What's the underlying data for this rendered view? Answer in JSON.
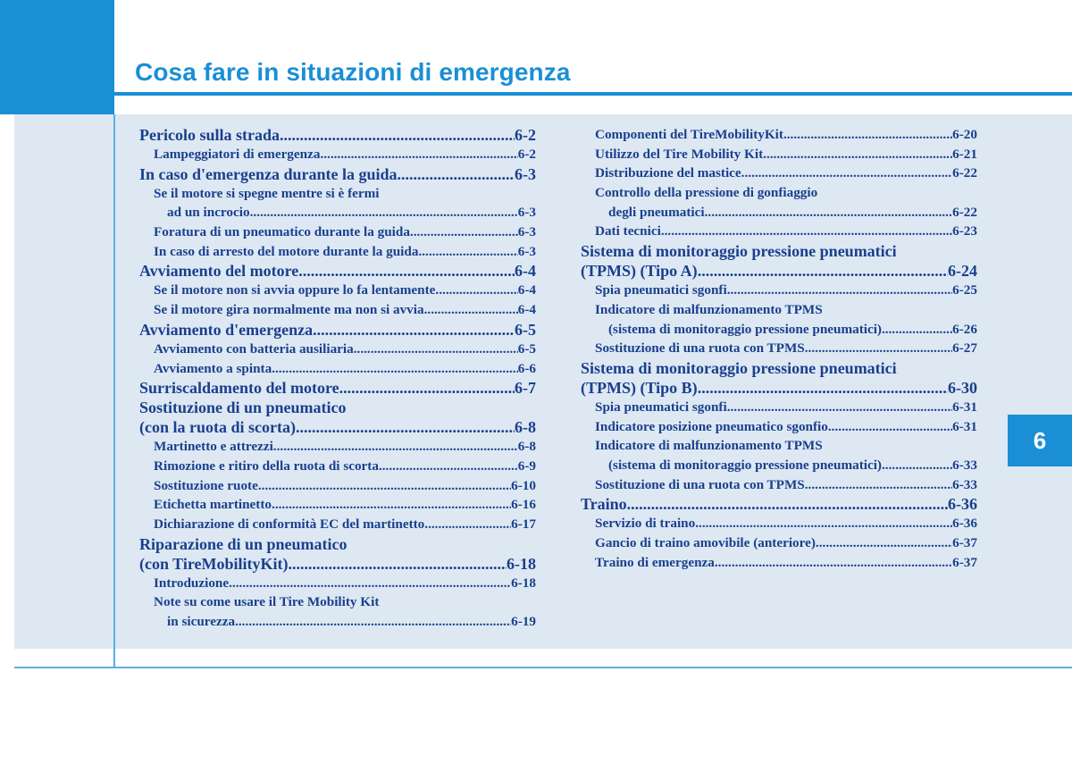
{
  "header": {
    "title": "Cosa fare in situazioni di emergenza",
    "chapter_tab": "6"
  },
  "colors": {
    "accent_blue": "#1a8fd6",
    "panel_background": "#dde8f3",
    "text_navy": "#1a3f8c"
  },
  "toc": {
    "left": [
      {
        "text": "Pericolo sulla strada ",
        "page": "6-2",
        "level": "main"
      },
      {
        "text": "Lampeggiatori di emergenza",
        "page": "6-2",
        "level": "sub"
      },
      {
        "text": "In caso d'emergenza durante la guida ",
        "page": "6-3",
        "level": "main"
      },
      {
        "text": "Se il motore si spegne mentre si è fermi",
        "page": "",
        "level": "sub"
      },
      {
        "text": "ad un incrocio ",
        "page": "6-3",
        "level": "sub2"
      },
      {
        "text": "Foratura di un pneumatico durante la guida",
        "page": "6-3",
        "level": "sub"
      },
      {
        "text": "In caso di arresto del motore durante la guida ",
        "page": "6-3",
        "level": "sub"
      },
      {
        "text": "Avviamento del motore",
        "page": "6-4",
        "level": "main"
      },
      {
        "text": "Se il motore non si avvia oppure lo fa lentamente",
        "page": "6-4",
        "level": "sub"
      },
      {
        "text": "Se il motore gira normalmente ma non si avvia",
        "page": "6-4",
        "level": "sub"
      },
      {
        "text": "Avviamento d'emergenza ",
        "page": "6-5",
        "level": "main"
      },
      {
        "text": "Avviamento con batteria ausiliaria",
        "page": "6-5",
        "level": "sub"
      },
      {
        "text": "Avviamento a spinta",
        "page": "6-6",
        "level": "sub"
      },
      {
        "text": "Surriscaldamento del motore",
        "page": "6-7",
        "level": "main"
      },
      {
        "text": "Sostituzione di un pneumatico",
        "page": "",
        "level": "main"
      },
      {
        "text": "(con la ruota di scorta)",
        "page": "6-8",
        "level": "main"
      },
      {
        "text": "Martinetto e attrezzi",
        "page": "6-8",
        "level": "sub"
      },
      {
        "text": "Rimozione e ritiro della ruota di scorta ",
        "page": "6-9",
        "level": "sub"
      },
      {
        "text": "Sostituzione ruote ",
        "page": "6-10",
        "level": "sub"
      },
      {
        "text": "Etichetta martinetto ",
        "page": "6-16",
        "level": "sub"
      },
      {
        "text": "Dichiarazione di conformità EC del martinetto",
        "page": "6-17",
        "level": "sub"
      },
      {
        "text": "Riparazione di un pneumatico",
        "page": "",
        "level": "main"
      },
      {
        "text": "(con TireMobilityKit)",
        "page": "6-18",
        "level": "main"
      },
      {
        "text": "Introduzione",
        "page": "6-18",
        "level": "sub"
      },
      {
        "text": "Note su come usare il Tire Mobility Kit",
        "page": "",
        "level": "sub"
      },
      {
        "text": "in sicurezza",
        "page": "6-19",
        "level": "sub2"
      }
    ],
    "right": [
      {
        "text": "Componenti del TireMobilityKit ",
        "page": "6-20",
        "level": "sub"
      },
      {
        "text": "Utilizzo del Tire Mobility Kit ",
        "page": "6-21",
        "level": "sub"
      },
      {
        "text": "Distribuzione del mastice",
        "page": "6-22",
        "level": "sub"
      },
      {
        "text": "Controllo della pressione di gonfiaggio",
        "page": "",
        "level": "sub"
      },
      {
        "text": "degli pneumatici  ",
        "page": "6-22",
        "level": "sub2"
      },
      {
        "text": "Dati tecnici",
        "page": "6-23",
        "level": "sub"
      },
      {
        "text": "Sistema di monitoraggio pressione pneumatici",
        "page": "",
        "level": "main"
      },
      {
        "text": "(TPMS) (Tipo A) ",
        "page": "6-24",
        "level": "main"
      },
      {
        "text": "Spia pneumatici sgonfi ",
        "page": "6-25",
        "level": "sub"
      },
      {
        "text": "Indicatore di malfunzionamento TPMS",
        "page": "",
        "level": "sub"
      },
      {
        "text": "(sistema di monitoraggio pressione pneumatici)",
        "page": "6-26",
        "level": "sub2"
      },
      {
        "text": "Sostituzione di una ruota con TPMS",
        "page": "6-27",
        "level": "sub"
      },
      {
        "text": "Sistema di monitoraggio pressione pneumatici",
        "page": "",
        "level": "main"
      },
      {
        "text": "(TPMS) (Tipo B)",
        "page": "6-30",
        "level": "main"
      },
      {
        "text": "Spia pneumatici sgonfi ",
        "page": "6-31",
        "level": "sub"
      },
      {
        "text": "Indicatore posizione pneumatico sgonfio ",
        "page": "6-31",
        "level": "sub"
      },
      {
        "text": "Indicatore di malfunzionamento TPMS",
        "page": "",
        "level": "sub"
      },
      {
        "text": "(sistema di monitoraggio pressione pneumatici)",
        "page": "6-33",
        "level": "sub2"
      },
      {
        "text": "Sostituzione di una ruota con TPMS",
        "page": "6-33",
        "level": "sub"
      },
      {
        "text": "Traino ",
        "page": "6-36",
        "level": "main"
      },
      {
        "text": "Servizio di traino ",
        "page": "6-36",
        "level": "sub"
      },
      {
        "text": "Gancio di traino amovibile (anteriore)",
        "page": "6-37",
        "level": "sub"
      },
      {
        "text": "Traino di emergenza ",
        "page": "6-37",
        "level": "sub"
      }
    ]
  }
}
